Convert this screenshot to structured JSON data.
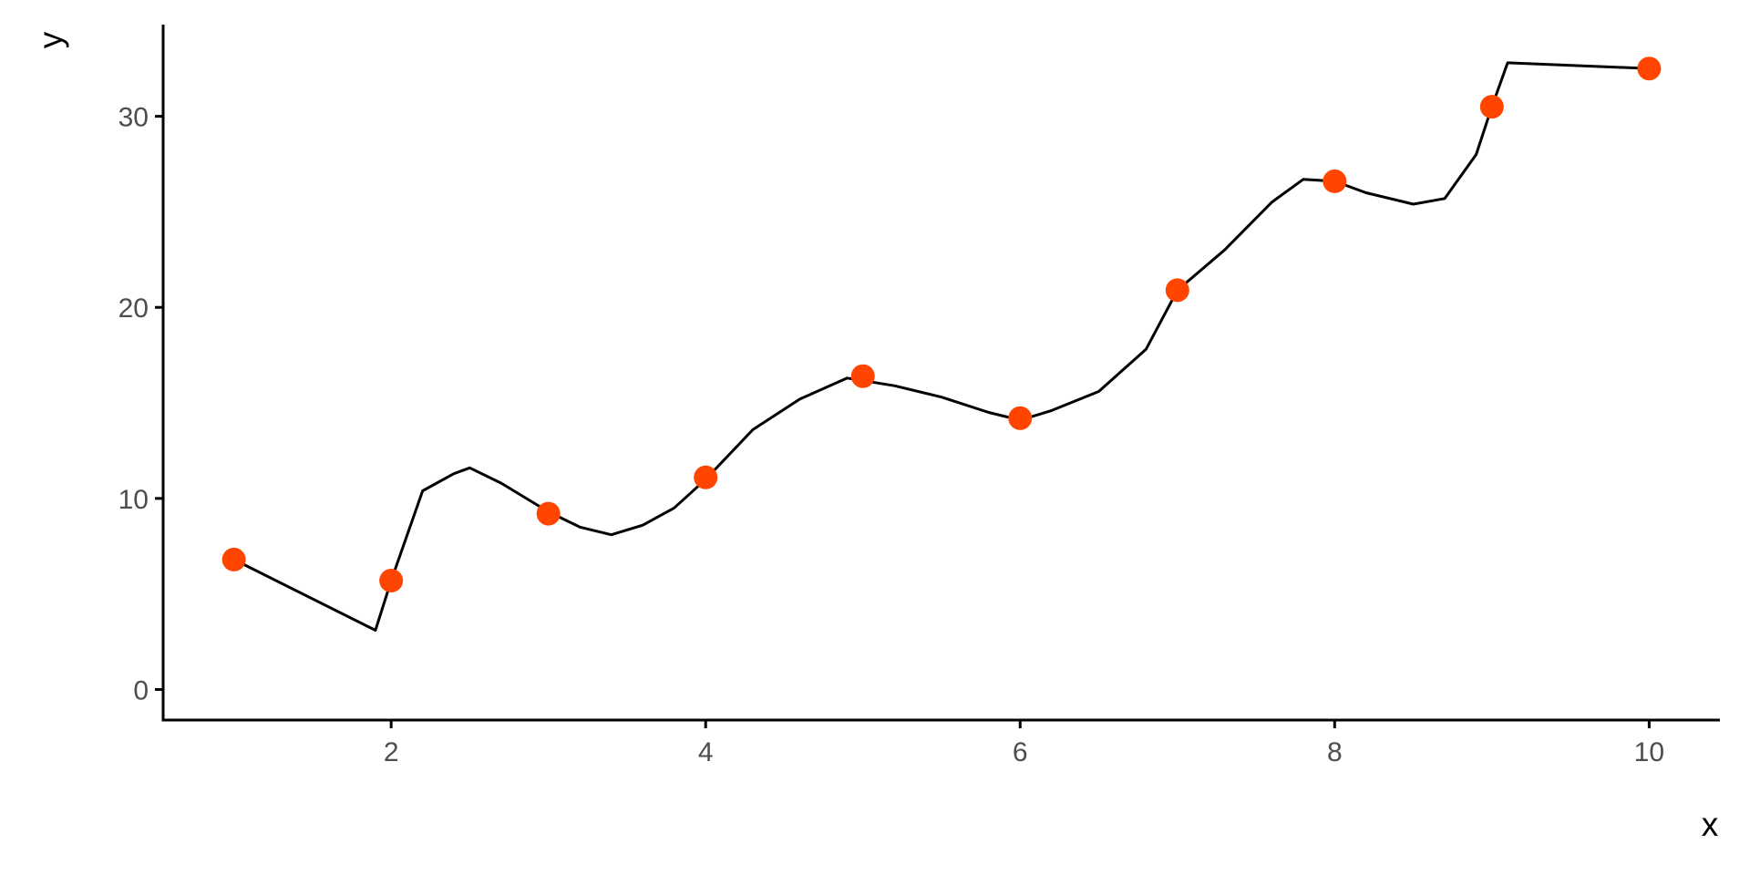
{
  "chart_data": {
    "type": "scatter",
    "title": "",
    "xlabel": "x",
    "ylabel": "y",
    "xlim": [
      0.55,
      10.45
    ],
    "ylim": [
      -1.6,
      34.8
    ],
    "xticks": [
      2,
      4,
      6,
      8,
      10
    ],
    "yticks": [
      0,
      10,
      20,
      30
    ],
    "xtick_labels": [
      "2",
      "4",
      "6",
      "8",
      "10"
    ],
    "ytick_labels": [
      "0",
      "10",
      "20",
      "30"
    ],
    "grid": false,
    "point_color": "#FF4500",
    "line_color": "#000000",
    "points": {
      "x": [
        1,
        2,
        3,
        4,
        5,
        6,
        7,
        8,
        9,
        10
      ],
      "y": [
        6.8,
        5.7,
        9.2,
        11.1,
        16.4,
        14.2,
        20.9,
        26.6,
        30.5,
        32.5
      ]
    },
    "line": {
      "x": [
        1,
        1.9,
        2,
        2.2,
        2.4,
        2.5,
        2.7,
        3,
        3.2,
        3.4,
        3.6,
        3.8,
        4,
        4.3,
        4.6,
        4.9,
        5.2,
        5.5,
        5.8,
        6,
        6.2,
        6.5,
        6.8,
        7,
        7.3,
        7.6,
        7.8,
        8,
        8.2,
        8.5,
        8.7,
        8.9,
        9,
        9.1,
        10
      ],
      "y": [
        6.8,
        3.1,
        5.7,
        10.4,
        11.3,
        11.6,
        10.8,
        9.3,
        8.5,
        8.1,
        8.6,
        9.5,
        11.0,
        13.6,
        15.2,
        16.3,
        15.9,
        15.3,
        14.5,
        14.1,
        14.6,
        15.6,
        17.8,
        20.9,
        23.0,
        25.5,
        26.7,
        26.6,
        26.0,
        25.4,
        25.7,
        28.0,
        30.5,
        32.8,
        32.5
      ]
    }
  }
}
